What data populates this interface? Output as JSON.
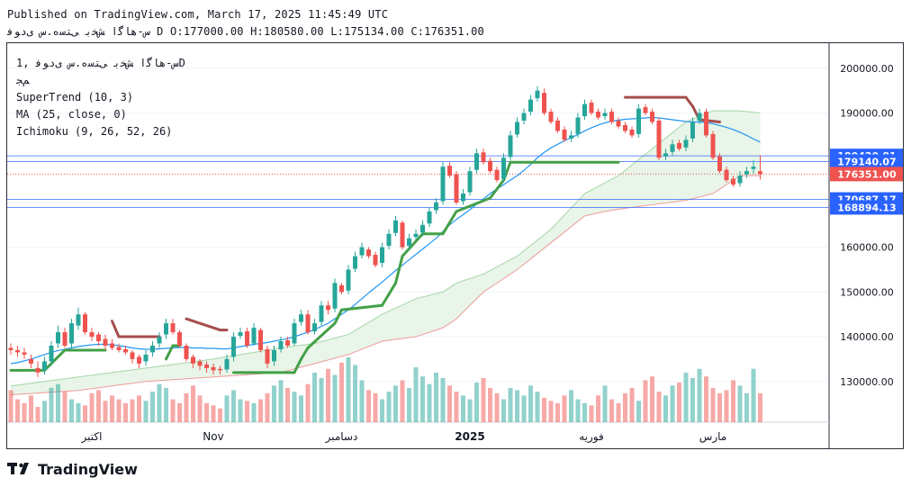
{
  "header": {
    "published": "Published on TradingView.com, March 17, 2025 11:45:49 UTC",
    "symbol_line": "ﺱ-ﻫﺎﮔﺍ ﺶﺨﺑ ﯽﺘﺳﻩ.ﺱ ﯼﺩﻮﻓ D O:177000.00 H:180580.00 L:175134.00 C:176351.00"
  },
  "legend": {
    "title": "ﺱ-ﻫﺎﮔﺍ ﺶﺨﺑ ﯽﺘﺳﻩ.ﺱ ﯼﺩﻮﻓ ,1D",
    "exchange": "ﻢﺠ",
    "indicators": [
      "SuperTrend (10, 3)",
      "MA (25, close, 0)",
      "Ichimoku (9, 26, 52, 26)"
    ]
  },
  "branding": {
    "name": "TradingView"
  },
  "colors": {
    "up": "#26a69a",
    "down": "#ef5350",
    "supertrend_up": "#43a047",
    "supertrend_down": "#a64d4d",
    "ma": "#2196f3",
    "cloud": "#e6f4e6",
    "hline": "#2962ff"
  },
  "chart_data": {
    "type": "candlestick",
    "timeframe": "1D",
    "y_ticks": [
      130000,
      140000,
      150000,
      160000,
      170000,
      180000,
      190000,
      200000
    ],
    "y_tick_labels": [
      "130000.00",
      "140000.00",
      "150000.00",
      "160000.00",
      "170000.00",
      "180000.00",
      "190000.00",
      "200000.00"
    ],
    "ylim": [
      121500,
      205000
    ],
    "x_labels": [
      {
        "label": "اکتبر",
        "i": 12,
        "bold": false
      },
      {
        "label": "Nov",
        "i": 30,
        "bold": false
      },
      {
        "label": "دسامبر",
        "i": 49,
        "bold": false
      },
      {
        "label": "2025",
        "i": 68,
        "bold": true
      },
      {
        "label": "فوریه",
        "i": 86,
        "bold": false
      },
      {
        "label": "مارس",
        "i": 104,
        "bold": false
      }
    ],
    "price_labels": [
      {
        "value": 180420.81,
        "label": "180420.81",
        "color": "#2962ff"
      },
      {
        "value": 179140.07,
        "label": "179140.07",
        "color": "#2962ff"
      },
      {
        "value": 176351.0,
        "label": "176351.00",
        "color": "#ef5350"
      },
      {
        "value": 170687.17,
        "label": "170687.17",
        "color": "#2962ff"
      },
      {
        "value": 168894.13,
        "label": "168894.13",
        "color": "#2962ff"
      }
    ],
    "horizontal_lines": [
      180420.81,
      179140.07,
      170687.17,
      168894.13
    ],
    "last_close": 176351.0,
    "closes": [
      137000,
      136500,
      136000,
      134000,
      132000,
      134500,
      138000,
      141000,
      138000,
      143000,
      145000,
      141000,
      140000,
      139000,
      138000,
      137500,
      137000,
      136500,
      135000,
      134000,
      136000,
      138000,
      140000,
      143000,
      141000,
      138000,
      135000,
      134000,
      133500,
      133000,
      132500,
      132500,
      135000,
      140000,
      141000,
      138000,
      142000,
      137000,
      134000,
      137000,
      139000,
      138000,
      143000,
      145000,
      141000,
      143000,
      147000,
      146000,
      152000,
      150000,
      155000,
      158000,
      160000,
      158000,
      156000,
      160000,
      163000,
      166000,
      160000,
      162000,
      163000,
      165000,
      168000,
      170000,
      178000,
      176000,
      170000,
      172000,
      177000,
      181000,
      179000,
      177000,
      175000,
      180000,
      185000,
      188000,
      190000,
      193000,
      195000,
      190000,
      188000,
      186000,
      184000,
      185000,
      189000,
      192000,
      190000,
      189000,
      190000,
      188000,
      187000,
      186000,
      185000,
      191000,
      190000,
      188000,
      180000,
      181000,
      183000,
      182000,
      184000,
      188000,
      190000,
      185000,
      180000,
      177000,
      175000,
      174000,
      176000,
      177000,
      178000,
      176351
    ],
    "opens": [
      137500,
      137000,
      136500,
      135000,
      133000,
      132500,
      134500,
      138500,
      141000,
      138500,
      142500,
      145000,
      141000,
      140500,
      139500,
      138500,
      137700,
      137200,
      136500,
      135500,
      134500,
      136500,
      138500,
      140500,
      143000,
      141000,
      138000,
      135500,
      134500,
      133800,
      133200,
      132800,
      132700,
      135500,
      140200,
      141200,
      138500,
      141500,
      137200,
      134500,
      137200,
      139200,
      138500,
      143300,
      145000,
      141200,
      143300,
      147000,
      146300,
      151500,
      150300,
      155200,
      158200,
      159500,
      158300,
      156500,
      160300,
      163200,
      165500,
      160300,
      162300,
      163300,
      165300,
      168300,
      170300,
      178200,
      176300,
      170300,
      172300,
      177300,
      181200,
      179300,
      177300,
      175300,
      180200,
      185200,
      188300,
      190300,
      193300,
      194500,
      190300,
      188300,
      186300,
      184300,
      185300,
      189300,
      192300,
      190300,
      189300,
      190300,
      188300,
      187300,
      186300,
      185300,
      191300,
      190300,
      188300,
      180300,
      181300,
      183300,
      182300,
      184300,
      188300,
      190300,
      185300,
      180300,
      177300,
      175300,
      174300,
      176300,
      177500,
      177000
    ],
    "highs": [
      138500,
      138000,
      137500,
      136000,
      134500,
      135500,
      139000,
      142500,
      142000,
      144000,
      146500,
      145500,
      142000,
      141000,
      140500,
      139500,
      138500,
      138000,
      137000,
      136000,
      137000,
      139000,
      141000,
      144000,
      144000,
      141500,
      138500,
      136000,
      135000,
      134500,
      134000,
      133500,
      136000,
      141000,
      142000,
      142000,
      143000,
      142000,
      138000,
      138000,
      140000,
      140000,
      144000,
      146000,
      146000,
      144000,
      148000,
      148000,
      153000,
      152000,
      156000,
      159000,
      161000,
      160000,
      159000,
      161000,
      164000,
      167000,
      166000,
      163000,
      164000,
      166000,
      169000,
      171000,
      179000,
      179000,
      177000,
      173000,
      178000,
      182000,
      182000,
      180000,
      178000,
      181000,
      186000,
      189000,
      191000,
      194000,
      196000,
      195500,
      191000,
      189000,
      187000,
      186000,
      190000,
      193000,
      193000,
      191000,
      191000,
      191000,
      189000,
      188000,
      187000,
      192000,
      192000,
      191000,
      189000,
      182000,
      184000,
      184000,
      185000,
      189000,
      191000,
      191000,
      186000,
      181000,
      178000,
      176000,
      177000,
      178000,
      179500,
      180580
    ],
    "lows": [
      136000,
      135500,
      135000,
      133000,
      131000,
      131500,
      133500,
      137500,
      137500,
      137500,
      141500,
      140500,
      139000,
      138000,
      137000,
      137000,
      136500,
      136000,
      134000,
      133000,
      133500,
      135500,
      137500,
      139500,
      140500,
      137500,
      134500,
      133000,
      132500,
      132000,
      131500,
      131500,
      132000,
      134500,
      139500,
      137500,
      138000,
      136500,
      133000,
      133500,
      136500,
      137500,
      138000,
      142500,
      140500,
      140500,
      142500,
      145000,
      145500,
      149500,
      149500,
      154500,
      157500,
      157500,
      155500,
      155500,
      159500,
      162500,
      159500,
      159500,
      161500,
      162500,
      164500,
      167500,
      169500,
      175500,
      169500,
      169500,
      171500,
      176500,
      178500,
      176500,
      174500,
      174500,
      179500,
      184500,
      187500,
      189500,
      192500,
      189500,
      187500,
      185500,
      183500,
      183500,
      184500,
      188500,
      189500,
      188500,
      188500,
      187500,
      186500,
      185500,
      184500,
      184500,
      189500,
      187500,
      179500,
      179500,
      180500,
      181500,
      181500,
      183500,
      187500,
      184500,
      179500,
      176500,
      174500,
      173500,
      173500,
      175500,
      176500,
      175134
    ],
    "volumes": [
      42,
      30,
      25,
      35,
      20,
      28,
      45,
      50,
      40,
      30,
      25,
      22,
      38,
      42,
      28,
      35,
      30,
      25,
      30,
      35,
      28,
      40,
      50,
      45,
      30,
      25,
      38,
      48,
      35,
      25,
      22,
      18,
      35,
      42,
      30,
      28,
      25,
      30,
      38,
      48,
      55,
      45,
      40,
      35,
      50,
      65,
      58,
      70,
      62,
      78,
      85,
      75,
      55,
      42,
      38,
      30,
      40,
      48,
      55,
      45,
      72,
      60,
      50,
      65,
      58,
      48,
      40,
      35,
      30,
      52,
      58,
      45,
      38,
      30,
      45,
      42,
      35,
      48,
      40,
      32,
      28,
      25,
      35,
      42,
      30,
      25,
      22,
      35,
      48,
      30,
      25,
      38,
      45,
      28,
      55,
      60,
      40,
      35,
      48,
      52,
      65,
      58,
      70,
      60,
      45,
      38,
      42,
      55,
      48,
      38,
      70,
      38
    ],
    "ma25": [
      134000,
      134200,
      134600,
      135000,
      135500,
      136000,
      136500,
      136900,
      137200,
      137500,
      137800,
      138000,
      138200,
      138300,
      138300,
      138200,
      138000,
      137800,
      137500,
      137300,
      137200,
      137200,
      137300,
      137400,
      137500,
      137600,
      137600,
      137500,
      137500,
      137400,
      137400,
      137300,
      137300,
      137500,
      137800,
      138000,
      138300,
      138500,
      138700,
      139000,
      139300,
      139600,
      140000,
      140500,
      141000,
      141600,
      142300,
      143000,
      144000,
      145000,
      146000,
      147200,
      148500,
      149800,
      151000,
      152200,
      153500,
      154800,
      156000,
      157200,
      158400,
      159600,
      160800,
      162000,
      163500,
      165000,
      166200,
      167300,
      168400,
      169600,
      170800,
      172000,
      173000,
      174000,
      175000,
      176000,
      177200,
      178500,
      180000,
      181200,
      182200,
      183000,
      183800,
      184500,
      185200,
      186000,
      186700,
      187300,
      187800,
      188200,
      188400,
      188600,
      188700,
      188800,
      188900,
      189000,
      188900,
      188700,
      188500,
      188300,
      188100,
      188000,
      188000,
      187900,
      187600,
      187200,
      186800,
      186300,
      185700,
      185000,
      184200,
      183500
    ],
    "supertrend": [
      {
        "i": 0,
        "v": 132500,
        "trend": "up"
      },
      {
        "i": 5,
        "v": 132500,
        "trend": "up"
      },
      {
        "i": 8,
        "v": 137000,
        "trend": "up"
      },
      {
        "i": 14,
        "v": 137000,
        "trend": "up"
      },
      {
        "i": 15,
        "v": 143500,
        "trend": "down"
      },
      {
        "i": 16,
        "v": 140000,
        "trend": "down"
      },
      {
        "i": 22,
        "v": 140000,
        "trend": "down"
      },
      {
        "i": 23,
        "v": 135000,
        "trend": "up"
      },
      {
        "i": 24,
        "v": 138000,
        "trend": "up"
      },
      {
        "i": 25,
        "v": 138000,
        "trend": "up"
      },
      {
        "i": 26,
        "v": 144000,
        "trend": "down"
      },
      {
        "i": 31,
        "v": 141500,
        "trend": "down"
      },
      {
        "i": 32,
        "v": 141500,
        "trend": "down"
      },
      {
        "i": 33,
        "v": 132000,
        "trend": "up"
      },
      {
        "i": 42,
        "v": 132000,
        "trend": "up"
      },
      {
        "i": 43,
        "v": 135000,
        "trend": "up"
      },
      {
        "i": 44,
        "v": 137500,
        "trend": "up"
      },
      {
        "i": 48,
        "v": 143000,
        "trend": "up"
      },
      {
        "i": 49,
        "v": 146000,
        "trend": "up"
      },
      {
        "i": 55,
        "v": 147000,
        "trend": "up"
      },
      {
        "i": 57,
        "v": 152000,
        "trend": "up"
      },
      {
        "i": 58,
        "v": 158000,
        "trend": "up"
      },
      {
        "i": 61,
        "v": 163000,
        "trend": "up"
      },
      {
        "i": 64,
        "v": 163000,
        "trend": "up"
      },
      {
        "i": 66,
        "v": 168000,
        "trend": "up"
      },
      {
        "i": 71,
        "v": 171000,
        "trend": "up"
      },
      {
        "i": 73,
        "v": 175000,
        "trend": "up"
      },
      {
        "i": 74,
        "v": 179000,
        "trend": "up"
      },
      {
        "i": 90,
        "v": 179000,
        "trend": "up"
      },
      {
        "i": 91,
        "v": 193500,
        "trend": "down"
      },
      {
        "i": 100,
        "v": 193500,
        "trend": "down"
      },
      {
        "i": 101,
        "v": 191500,
        "trend": "down"
      },
      {
        "i": 102,
        "v": 188500,
        "trend": "down"
      },
      {
        "i": 105,
        "v": 188000,
        "trend": "down"
      }
    ],
    "ichimoku_span_a": [
      [
        0,
        129000
      ],
      [
        10,
        131000
      ],
      [
        20,
        133000
      ],
      [
        30,
        135000
      ],
      [
        40,
        137500
      ],
      [
        45,
        138500
      ],
      [
        50,
        140500
      ],
      [
        55,
        145000
      ],
      [
        60,
        148500
      ],
      [
        64,
        150000
      ],
      [
        66,
        152000
      ],
      [
        70,
        154000
      ],
      [
        75,
        158000
      ],
      [
        80,
        164000
      ],
      [
        85,
        172000
      ],
      [
        90,
        176000
      ],
      [
        95,
        182000
      ],
      [
        100,
        188000
      ],
      [
        104,
        190500
      ],
      [
        108,
        190500
      ],
      [
        111,
        190000
      ]
    ],
    "ichimoku_span_b": [
      [
        0,
        127000
      ],
      [
        10,
        128000
      ],
      [
        20,
        130000
      ],
      [
        30,
        131000
      ],
      [
        40,
        132000
      ],
      [
        45,
        134000
      ],
      [
        50,
        136000
      ],
      [
        55,
        139000
      ],
      [
        60,
        140000
      ],
      [
        64,
        142000
      ],
      [
        66,
        144000
      ],
      [
        70,
        150000
      ],
      [
        75,
        155000
      ],
      [
        80,
        161000
      ],
      [
        85,
        167000
      ],
      [
        88,
        168000
      ],
      [
        90,
        168500
      ],
      [
        95,
        169500
      ],
      [
        100,
        170500
      ],
      [
        104,
        172000
      ],
      [
        108,
        176000
      ],
      [
        111,
        176000
      ]
    ]
  }
}
